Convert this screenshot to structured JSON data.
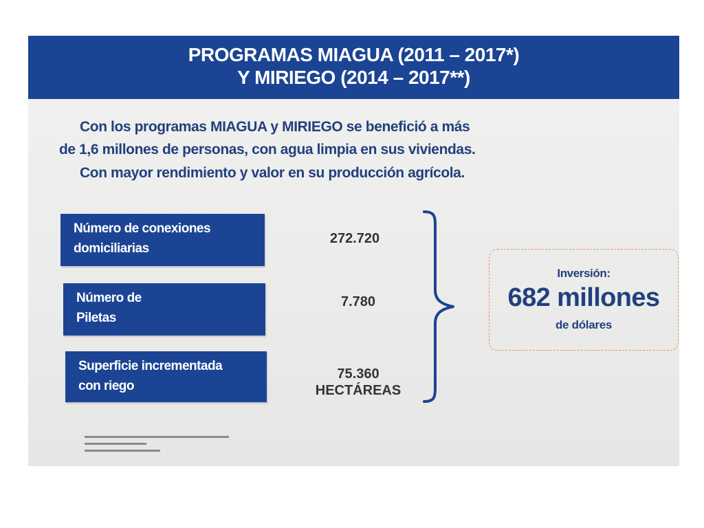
{
  "header": {
    "line1": "PROGRAMAS MIAGUA (2011 – 2017*)",
    "line2": "Y MIRIEGO (2014 – 2017**)"
  },
  "intro": {
    "lines": [
      "Con los programas MIAGUA y MIRIEGO se benefició a más",
      "de 1,6 millones de personas, con agua limpia en sus viviendas.",
      "Con mayor rendimiento y valor en su producción agrícola."
    ]
  },
  "stats": [
    {
      "label_lines": [
        "Número de conexiones",
        "domiciliarias"
      ],
      "value": "272.720",
      "unit": ""
    },
    {
      "label_lines": [
        "Número de",
        "Piletas"
      ],
      "value": "7.780",
      "unit": ""
    },
    {
      "label_lines": [
        "Superficie incrementada",
        "con riego"
      ],
      "value": "75.360",
      "unit": "HECTÁREAS"
    }
  ],
  "investment": {
    "label": "Inversión:",
    "value": "682 millones",
    "unit": "de dólares"
  },
  "colors": {
    "brand_blue": "#1b4494",
    "text_blue": "#22407e",
    "box_border": "#e39a5f"
  }
}
